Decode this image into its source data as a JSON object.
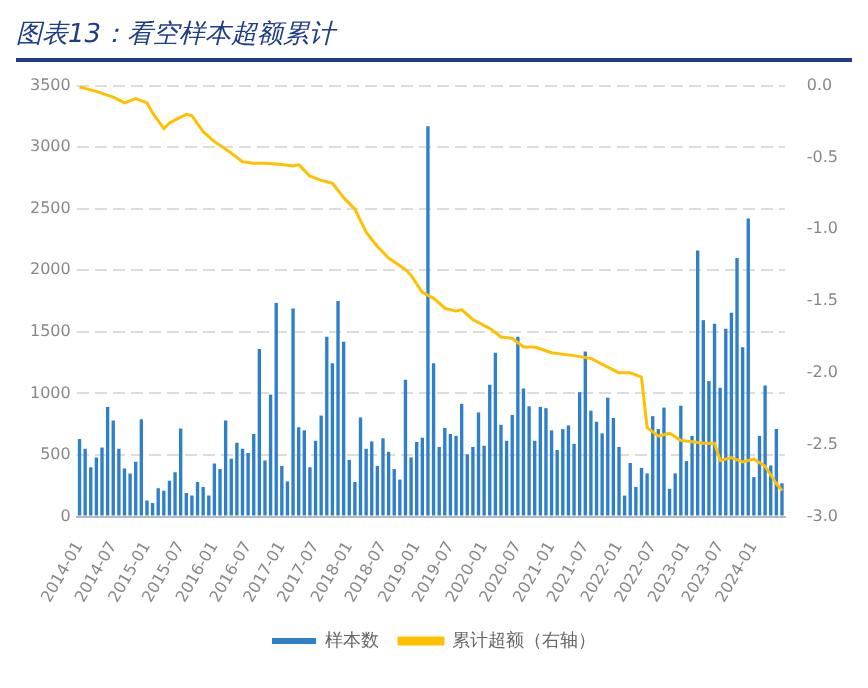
{
  "chart_data": {
    "type": "bar",
    "title": "图表13：看空样本超额累计",
    "categories": [
      "2014-01",
      null,
      null,
      null,
      null,
      null,
      "2014-07",
      null,
      null,
      null,
      null,
      null,
      "2015-01",
      null,
      null,
      null,
      null,
      null,
      "2015-07",
      null,
      null,
      null,
      null,
      null,
      "2016-01",
      null,
      null,
      null,
      null,
      null,
      "2016-07",
      null,
      null,
      null,
      null,
      null,
      "2017-01",
      null,
      null,
      null,
      null,
      null,
      "2017-07",
      null,
      null,
      null,
      null,
      null,
      "2018-01",
      null,
      null,
      null,
      null,
      null,
      "2018-07",
      null,
      null,
      null,
      null,
      null,
      "2019-01",
      null,
      null,
      null,
      null,
      null,
      "2019-07",
      null,
      null,
      null,
      null,
      null,
      "2020-01",
      null,
      null,
      null,
      null,
      null,
      "2020-07",
      null,
      null,
      null,
      null,
      null,
      "2021-01",
      null,
      null,
      null,
      null,
      null,
      "2021-07",
      null,
      null,
      null,
      null,
      null,
      "2022-01",
      null,
      null,
      null,
      null,
      null,
      "2022-07",
      null,
      null,
      null,
      null,
      null,
      "2023-01",
      null,
      null,
      null,
      null,
      null,
      "2023-07",
      null,
      null,
      null,
      null,
      null,
      "2024-01",
      null,
      null,
      null,
      null,
      null
    ],
    "series": [
      {
        "name": "样本数",
        "color": "#2f80c8",
        "values": [
          630,
          550,
          400,
          480,
          560,
          890,
          780,
          550,
          390,
          350,
          445,
          790,
          130,
          110,
          230,
          210,
          290,
          360,
          715,
          190,
          170,
          280,
          240,
          170,
          430,
          385,
          780,
          470,
          600,
          550,
          515,
          670,
          1360,
          455,
          990,
          1735,
          410,
          285,
          1690,
          725,
          700,
          400,
          615,
          820,
          1460,
          1245,
          1750,
          1420,
          460,
          280,
          805,
          550,
          610,
          410,
          635,
          525,
          385,
          300,
          1110,
          480,
          605,
          640,
          3170,
          1245,
          565,
          720,
          670,
          655,
          915,
          505,
          565,
          845,
          575,
          1070,
          1330,
          745,
          615,
          825,
          1460,
          1040,
          895,
          615,
          890,
          880,
          700,
          540,
          710,
          740,
          590,
          1010,
          1340,
          860,
          770,
          675,
          965,
          800,
          565,
          170,
          435,
          240,
          395,
          350,
          815,
          710,
          885,
          225,
          350,
          900,
          450,
          655,
          2160,
          1595,
          1100,
          1565,
          1045,
          1525,
          1655,
          2100,
          1375,
          2420,
          320,
          655,
          1065,
          415,
          710,
          270
        ]
      },
      {
        "name": "累计超额（右轴）",
        "type": "line",
        "axis": "y2",
        "color": "#ffc000",
        "values": [
          -0.01,
          null,
          null,
          -0.04,
          null,
          null,
          -0.08,
          null,
          -0.12,
          null,
          -0.09,
          null,
          -0.12,
          -0.19,
          null,
          -0.3,
          -0.26,
          null,
          null,
          -0.2,
          -0.21,
          null,
          -0.32,
          null,
          -0.39,
          null,
          null,
          -0.47,
          null,
          -0.53,
          null,
          -0.54,
          null,
          -0.54,
          null,
          null,
          -0.55,
          null,
          -0.56,
          -0.55,
          null,
          -0.63,
          null,
          -0.66,
          null,
          -0.68,
          null,
          -0.78,
          null,
          -0.86,
          null,
          -1.02,
          null,
          -1.12,
          null,
          -1.2,
          null,
          null,
          -1.28,
          -1.32,
          null,
          -1.44,
          null,
          -1.48,
          null,
          -1.55,
          null,
          -1.57,
          -1.56,
          null,
          -1.63,
          null,
          null,
          -1.69,
          null,
          -1.75,
          null,
          -1.76,
          null,
          -1.82,
          null,
          -1.82,
          null,
          null,
          -1.86,
          null,
          null,
          null,
          -1.88,
          null,
          null,
          -1.9,
          null,
          null,
          -1.96,
          null,
          -2.0,
          null,
          -2.0,
          null,
          -2.03,
          -2.38,
          null,
          -2.44,
          null,
          -2.42,
          null,
          -2.47,
          null,
          -2.48,
          null,
          -2.49,
          null,
          -2.49,
          -2.61,
          null,
          -2.59,
          null,
          -2.62,
          null,
          -2.6,
          null,
          -2.65,
          null,
          -2.77,
          -2.82
        ]
      }
    ],
    "ylim": [
      0,
      3500
    ],
    "yticks": [
      0,
      500,
      1000,
      1500,
      2000,
      2500,
      3000,
      3500
    ],
    "y2lim": [
      -3.0,
      0.0
    ],
    "y2ticks": [
      {
        "value": 0,
        "label": "0.0"
      },
      {
        "value": -0.5,
        "label": "-0.5"
      },
      {
        "value": -1,
        "label": "-1.0"
      },
      {
        "value": -1.5,
        "label": "-1.5"
      },
      {
        "value": -2,
        "label": "-2.0"
      },
      {
        "value": -2.5,
        "label": "-2.5"
      },
      {
        "value": -3,
        "label": "-3.0"
      }
    ],
    "grid": "y",
    "legend": "bottom",
    "line_style": "solid",
    "marker": "none"
  }
}
